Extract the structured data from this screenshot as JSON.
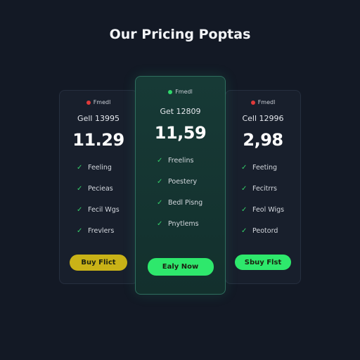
{
  "header": {
    "title": "Our Pricing Poptas"
  },
  "cards": [
    {
      "badge": "Fmedl",
      "plan": "Gell 13995",
      "price": "11.29",
      "features": [
        "Feeling",
        "Pecieas",
        "Fecil Wgs",
        "Frevlers"
      ],
      "button": "Buy Flict"
    },
    {
      "badge": "Fmedl",
      "plan": "Get 12809",
      "price": "11,59",
      "features": [
        "Freelins",
        "Poestery",
        "Bedl Pisng",
        "Pnytlems"
      ],
      "button": "Ealy Now"
    },
    {
      "badge": "Fmedl",
      "plan": "Cell 12996",
      "price": "2,98",
      "features": [
        "Feeting",
        "Fecitrrs",
        "Feol Wigs",
        "Peotord"
      ],
      "button": "Sbuy Flst"
    }
  ]
}
